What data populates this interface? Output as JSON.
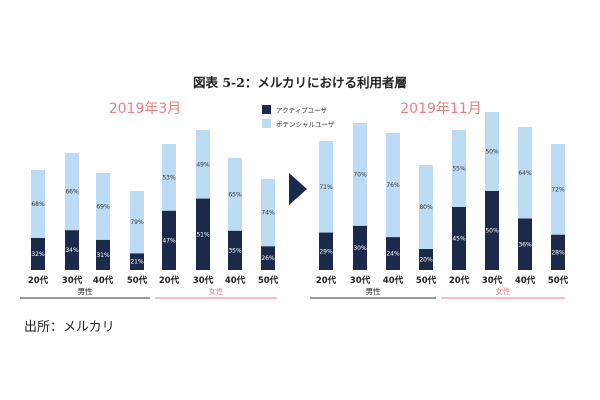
{
  "title": "図表 5-2：メルカリにおける利用者層",
  "caption": "出所：メルカリ",
  "colors": {
    "active": "#1b2a4a",
    "potential": "#bcdcf4",
    "female_accent": "#ee7d7e",
    "male_line": "#333333"
  },
  "chart_data": [
    {
      "type": "bar",
      "stacked": true,
      "percent": true,
      "period": "2019年3月",
      "categories": [
        "20代",
        "30代",
        "40代",
        "50代",
        "20代",
        "30代",
        "40代",
        "50代"
      ],
      "groups": [
        {
          "label": "男性",
          "categories": [
            0,
            1,
            2,
            3
          ]
        },
        {
          "label": "女性",
          "categories": [
            4,
            5,
            6,
            7
          ]
        }
      ],
      "series": [
        {
          "name": "アクティブユーザ",
          "values": [
            32,
            34,
            31,
            21,
            47,
            51,
            35,
            26
          ],
          "labels": [
            "32%",
            "34%",
            "31%",
            "21%",
            "47%",
            "51%",
            "35%",
            "26%"
          ]
        },
        {
          "name": "ポテンシャルユーザ",
          "values": [
            68,
            66,
            69,
            79,
            53,
            49,
            65,
            74
          ],
          "labels": [
            "68%",
            "66%",
            "69%",
            "79%",
            "53%",
            "49%",
            "65%",
            "74%"
          ]
        }
      ],
      "bar_heights": [
        100,
        117,
        97,
        79,
        126,
        140,
        112,
        91
      ],
      "legend": "top-center"
    },
    {
      "type": "bar",
      "stacked": true,
      "percent": true,
      "period": "2019年11月",
      "categories": [
        "20代",
        "30代",
        "40代",
        "50代",
        "20代",
        "30代",
        "40代",
        "50代"
      ],
      "groups": [
        {
          "label": "男性",
          "categories": [
            0,
            1,
            2,
            3
          ]
        },
        {
          "label": "女性",
          "categories": [
            4,
            5,
            6,
            7
          ]
        }
      ],
      "series": [
        {
          "name": "アクティブユーザ",
          "values": [
            29,
            30,
            24,
            20,
            45,
            50,
            36,
            28
          ],
          "labels": [
            "29%",
            "30%",
            "24%",
            "20%",
            "45%",
            "50%",
            "36%",
            "28%"
          ]
        },
        {
          "name": "ポテンシャルユーザ",
          "values": [
            71,
            70,
            76,
            80,
            55,
            50,
            64,
            72
          ],
          "labels": [
            "71%",
            "70%",
            "76%",
            "80%",
            "55%",
            "50%",
            "64%",
            "72%"
          ]
        }
      ],
      "bar_heights": [
        129,
        147,
        137,
        105,
        140,
        158,
        143,
        126
      ],
      "legend": "top-center"
    }
  ],
  "legend": [
    {
      "label": "アクティブユーザ",
      "color": "#1b2a4a"
    },
    {
      "label": "ポテンシャルユーザ",
      "color": "#bcdcf4"
    }
  ]
}
